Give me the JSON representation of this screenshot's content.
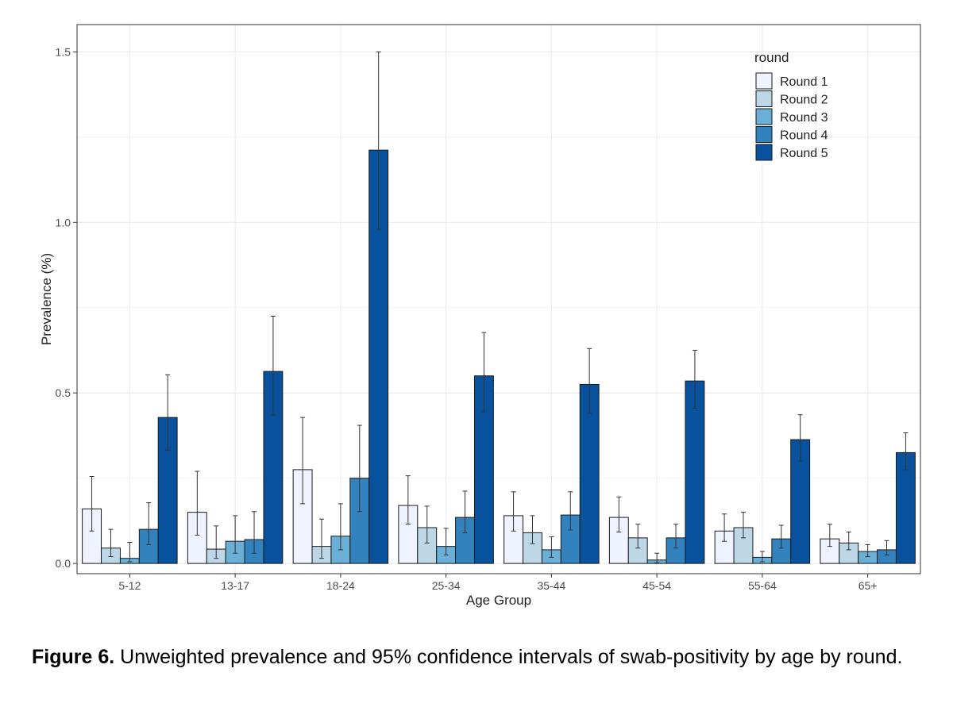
{
  "chart_data": {
    "type": "bar",
    "title": "",
    "xlabel": "Age Group",
    "ylabel": "Prevalence (%)",
    "ylim": [
      -0.03,
      1.58
    ],
    "y_ticks": [
      "0.0",
      "0.5",
      "1.0",
      "1.5"
    ],
    "grid": true,
    "legend_title": "round",
    "legend_position": "top-right",
    "categories": [
      "5-12",
      "13-17",
      "18-24",
      "25-34",
      "35-44",
      "45-54",
      "55-64",
      "65+"
    ],
    "series": [
      {
        "name": "Round 1",
        "color": "#eff3ff",
        "values": [
          0.16,
          0.15,
          0.275,
          0.17,
          0.14,
          0.135,
          0.095,
          0.072
        ],
        "ci_low": [
          0.095,
          0.083,
          0.175,
          0.115,
          0.095,
          0.092,
          0.065,
          0.05
        ],
        "ci_high": [
          0.255,
          0.27,
          0.428,
          0.257,
          0.21,
          0.195,
          0.145,
          0.115
        ]
      },
      {
        "name": "Round 2",
        "color": "#bdd7e7",
        "values": [
          0.045,
          0.042,
          0.05,
          0.105,
          0.09,
          0.075,
          0.105,
          0.06
        ],
        "ci_low": [
          0.02,
          0.015,
          0.015,
          0.06,
          0.058,
          0.045,
          0.075,
          0.04
        ],
        "ci_high": [
          0.1,
          0.11,
          0.13,
          0.168,
          0.14,
          0.115,
          0.15,
          0.092
        ]
      },
      {
        "name": "Round 3",
        "color": "#6baed6",
        "values": [
          0.015,
          0.065,
          0.08,
          0.05,
          0.04,
          0.01,
          0.018,
          0.035
        ],
        "ci_low": [
          0.005,
          0.03,
          0.04,
          0.025,
          0.018,
          0.002,
          0.005,
          0.02
        ],
        "ci_high": [
          0.062,
          0.14,
          0.175,
          0.103,
          0.078,
          0.03,
          0.035,
          0.055
        ]
      },
      {
        "name": "Round 4",
        "color": "#3182bd",
        "values": [
          0.1,
          0.07,
          0.25,
          0.135,
          0.142,
          0.075,
          0.072,
          0.04
        ],
        "ci_low": [
          0.055,
          0.03,
          0.152,
          0.09,
          0.098,
          0.045,
          0.045,
          0.025
        ],
        "ci_high": [
          0.178,
          0.152,
          0.405,
          0.212,
          0.21,
          0.115,
          0.112,
          0.067
        ]
      },
      {
        "name": "Round 5",
        "color": "#08519c",
        "values": [
          0.428,
          0.563,
          1.212,
          0.55,
          0.525,
          0.535,
          0.363,
          0.325
        ],
        "ci_low": [
          0.332,
          0.435,
          0.98,
          0.445,
          0.44,
          0.455,
          0.3,
          0.275
        ],
        "ci_high": [
          0.553,
          0.725,
          1.5,
          0.677,
          0.63,
          0.625,
          0.436,
          0.383
        ]
      }
    ]
  },
  "caption": {
    "label": "Figure 6.",
    "text": " Unweighted prevalence and 95% confidence intervals of swab-positivity by age by round."
  }
}
